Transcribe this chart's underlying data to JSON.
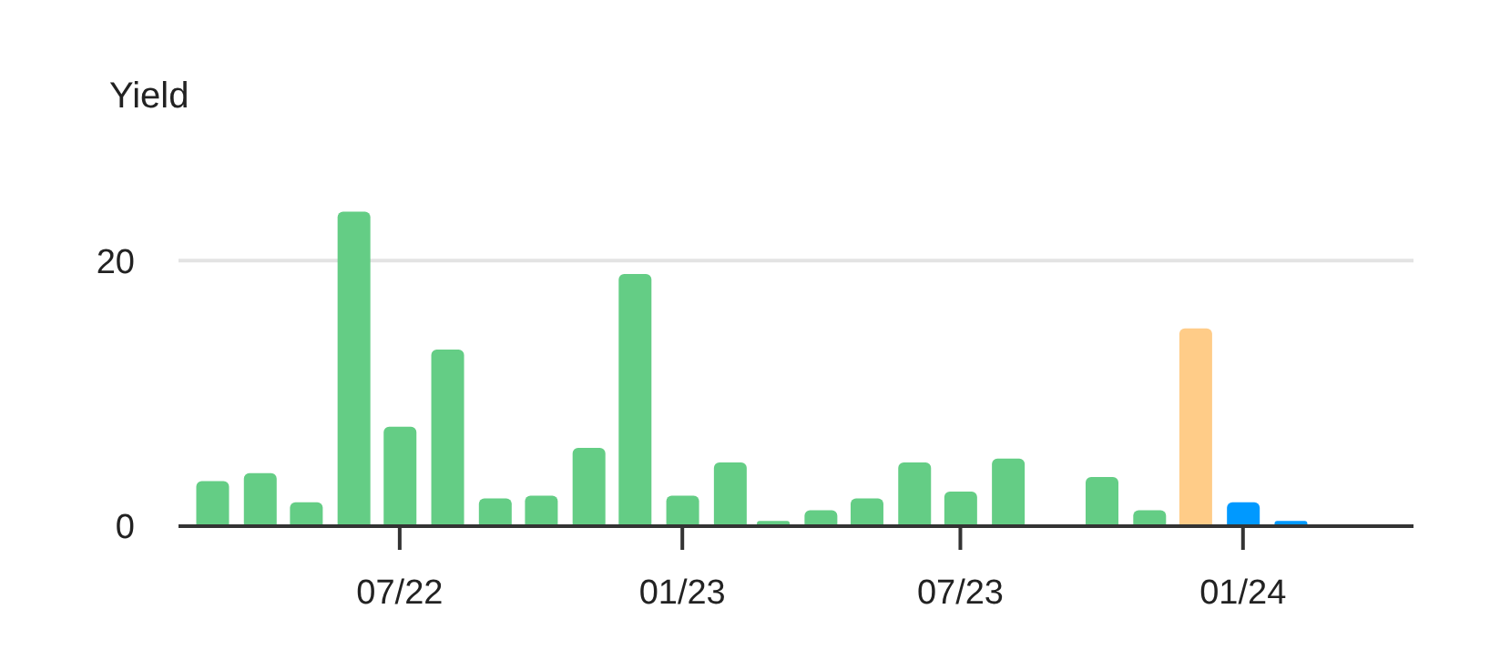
{
  "chart_data": {
    "type": "bar",
    "ylabel": "Yield",
    "x": [
      "2022-03",
      "2022-04",
      "2022-05",
      "2022-06",
      "2022-07",
      "2022-08",
      "2022-09",
      "2022-10",
      "2022-11",
      "2022-12",
      "2023-01",
      "2023-02",
      "2023-03",
      "2023-04",
      "2023-05",
      "2023-06",
      "2023-07",
      "2023-08",
      "2023-09",
      "2023-10",
      "2023-11",
      "2023-12",
      "2024-01",
      "2024-02",
      "2024-03",
      "2024-04"
    ],
    "values": [
      3.4,
      4.0,
      1.8,
      23.7,
      7.5,
      13.3,
      2.1,
      2.3,
      5.9,
      19.0,
      2.3,
      4.8,
      0.4,
      1.2,
      2.1,
      4.8,
      2.6,
      5.1,
      0,
      3.7,
      1.2,
      14.9,
      1.8,
      0.4,
      0,
      0
    ],
    "colors": [
      "#64cd85",
      "#64cd85",
      "#64cd85",
      "#64cd85",
      "#64cd85",
      "#64cd85",
      "#64cd85",
      "#64cd85",
      "#64cd85",
      "#64cd85",
      "#64cd85",
      "#64cd85",
      "#64cd85",
      "#64cd85",
      "#64cd85",
      "#64cd85",
      "#64cd85",
      "#64cd85",
      "#64cd85",
      "#64cd85",
      "#64cd85",
      "#ffcc88",
      "#0099ff",
      "#0099ff",
      "#0099ff",
      "#0099ff"
    ],
    "xlim": [
      "2022-02-07",
      "2024-04-21"
    ],
    "xticks": [
      {
        "value": "2022-07",
        "label": "07/22"
      },
      {
        "value": "2023-01",
        "label": "01/23"
      },
      {
        "value": "2023-07",
        "label": "07/23"
      },
      {
        "value": "2024-01",
        "label": "01/24"
      }
    ],
    "ylim": [
      0,
      24
    ],
    "yticks": [
      0,
      20
    ],
    "grid": "y"
  }
}
